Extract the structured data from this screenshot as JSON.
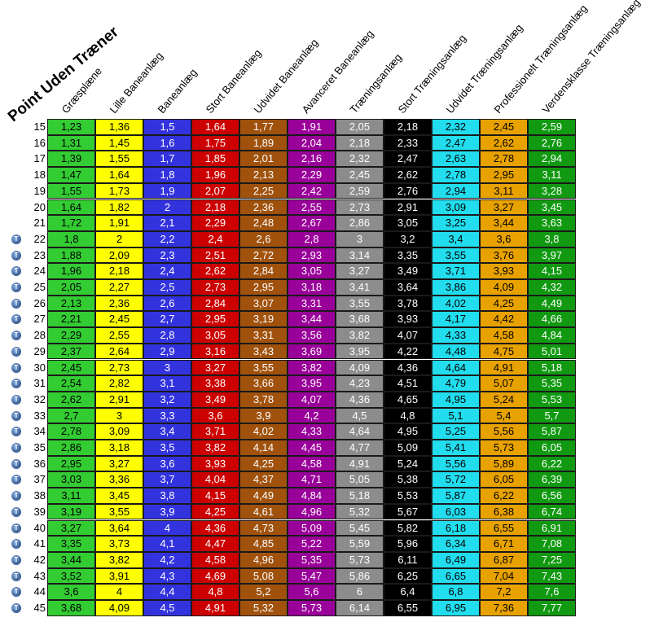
{
  "title": "Point Uden Træner",
  "chart_data": {
    "type": "table",
    "title": "Point Uden Træner",
    "columns": [
      {
        "name": "Græsplæne",
        "color": "#33cc33",
        "text_color": "#000000"
      },
      {
        "name": "Lille Baneanlæg",
        "color": "#ffff00",
        "text_color": "#000000"
      },
      {
        "name": "Baneanlæg",
        "color": "#3333dd",
        "text_color": "#ffffff"
      },
      {
        "name": "Stort Baneanlæg",
        "color": "#cc0000",
        "text_color": "#ffffff"
      },
      {
        "name": "Udvidet Baneanlæg",
        "color": "#a0520d",
        "text_color": "#ffffff"
      },
      {
        "name": "Avanceret Baneanlæg",
        "color": "#990099",
        "text_color": "#ffffff"
      },
      {
        "name": "Træningsanlæg",
        "color": "#8c8c8c",
        "text_color": "#ffffff"
      },
      {
        "name": "Stort Træningsanlæg",
        "color": "#000000",
        "text_color": "#ffffff"
      },
      {
        "name": "Udvidet Træningsanlæg",
        "color": "#22ddee",
        "text_color": "#000000"
      },
      {
        "name": "Professionelt Træningsanlæg",
        "color": "#e8a200",
        "text_color": "#000000"
      },
      {
        "name": "Verdensklasse Træningsanlæg",
        "color": "#119911",
        "text_color": "#ffffff"
      }
    ],
    "rows": [
      {
        "label": "15",
        "icon": false,
        "values": [
          "1,23",
          "1,36",
          "1,5",
          "1,64",
          "1,77",
          "1,91",
          "2,05",
          "2,18",
          "2,32",
          "2,45",
          "2,59"
        ]
      },
      {
        "label": "16",
        "icon": false,
        "values": [
          "1,31",
          "1,45",
          "1,6",
          "1,75",
          "1,89",
          "2,04",
          "2,18",
          "2,33",
          "2,47",
          "2,62",
          "2,76"
        ]
      },
      {
        "label": "17",
        "icon": false,
        "values": [
          "1,39",
          "1,55",
          "1,7",
          "1,85",
          "2,01",
          "2,16",
          "2,32",
          "2,47",
          "2,63",
          "2,78",
          "2,94"
        ]
      },
      {
        "label": "18",
        "icon": false,
        "values": [
          "1,47",
          "1,64",
          "1,8",
          "1,96",
          "2,13",
          "2,29",
          "2,45",
          "2,62",
          "2,78",
          "2,95",
          "3,11"
        ]
      },
      {
        "label": "19",
        "icon": false,
        "values": [
          "1,55",
          "1,73",
          "1,9",
          "2,07",
          "2,25",
          "2,42",
          "2,59",
          "2,76",
          "2,94",
          "3,11",
          "3,28"
        ]
      },
      {
        "label": "20",
        "icon": false,
        "values": [
          "1,64",
          "1,82",
          "2",
          "2,18",
          "2,36",
          "2,55",
          "2,73",
          "2,91",
          "3,09",
          "3,27",
          "3,45"
        ]
      },
      {
        "label": "21",
        "icon": false,
        "values": [
          "1,72",
          "1,91",
          "2,1",
          "2,29",
          "2,48",
          "2,67",
          "2,86",
          "3,05",
          "3,25",
          "3,44",
          "3,63"
        ]
      },
      {
        "label": "22",
        "icon": true,
        "values": [
          "1,8",
          "2",
          "2,2",
          "2,4",
          "2,6",
          "2,8",
          "3",
          "3,2",
          "3,4",
          "3,6",
          "3,8"
        ]
      },
      {
        "label": "23",
        "icon": true,
        "values": [
          "1,88",
          "2,09",
          "2,3",
          "2,51",
          "2,72",
          "2,93",
          "3,14",
          "3,35",
          "3,55",
          "3,76",
          "3,97"
        ]
      },
      {
        "label": "24",
        "icon": true,
        "values": [
          "1,96",
          "2,18",
          "2,4",
          "2,62",
          "2,84",
          "3,05",
          "3,27",
          "3,49",
          "3,71",
          "3,93",
          "4,15"
        ]
      },
      {
        "label": "25",
        "icon": true,
        "values": [
          "2,05",
          "2,27",
          "2,5",
          "2,73",
          "2,95",
          "3,18",
          "3,41",
          "3,64",
          "3,86",
          "4,09",
          "4,32"
        ]
      },
      {
        "label": "26",
        "icon": true,
        "values": [
          "2,13",
          "2,36",
          "2,6",
          "2,84",
          "3,07",
          "3,31",
          "3,55",
          "3,78",
          "4,02",
          "4,25",
          "4,49"
        ]
      },
      {
        "label": "27",
        "icon": true,
        "values": [
          "2,21",
          "2,45",
          "2,7",
          "2,95",
          "3,19",
          "3,44",
          "3,68",
          "3,93",
          "4,17",
          "4,42",
          "4,66"
        ]
      },
      {
        "label": "28",
        "icon": true,
        "values": [
          "2,29",
          "2,55",
          "2,8",
          "3,05",
          "3,31",
          "3,56",
          "3,82",
          "4,07",
          "4,33",
          "4,58",
          "4,84"
        ]
      },
      {
        "label": "29",
        "icon": true,
        "values": [
          "2,37",
          "2,64",
          "2,9",
          "3,16",
          "3,43",
          "3,69",
          "3,95",
          "4,22",
          "4,48",
          "4,75",
          "5,01"
        ]
      },
      {
        "label": "30",
        "icon": true,
        "values": [
          "2,45",
          "2,73",
          "3",
          "3,27",
          "3,55",
          "3,82",
          "4,09",
          "4,36",
          "4,64",
          "4,91",
          "5,18"
        ]
      },
      {
        "label": "31",
        "icon": true,
        "values": [
          "2,54",
          "2,82",
          "3,1",
          "3,38",
          "3,66",
          "3,95",
          "4,23",
          "4,51",
          "4,79",
          "5,07",
          "5,35"
        ]
      },
      {
        "label": "32",
        "icon": true,
        "values": [
          "2,62",
          "2,91",
          "3,2",
          "3,49",
          "3,78",
          "4,07",
          "4,36",
          "4,65",
          "4,95",
          "5,24",
          "5,53"
        ]
      },
      {
        "label": "33",
        "icon": true,
        "values": [
          "2,7",
          "3",
          "3,3",
          "3,6",
          "3,9",
          "4,2",
          "4,5",
          "4,8",
          "5,1",
          "5,4",
          "5,7"
        ]
      },
      {
        "label": "34",
        "icon": true,
        "values": [
          "2,78",
          "3,09",
          "3,4",
          "3,71",
          "4,02",
          "4,33",
          "4,64",
          "4,95",
          "5,25",
          "5,56",
          "5,87"
        ]
      },
      {
        "label": "35",
        "icon": true,
        "values": [
          "2,86",
          "3,18",
          "3,5",
          "3,82",
          "4,14",
          "4,45",
          "4,77",
          "5,09",
          "5,41",
          "5,73",
          "6,05"
        ]
      },
      {
        "label": "36",
        "icon": true,
        "values": [
          "2,95",
          "3,27",
          "3,6",
          "3,93",
          "4,25",
          "4,58",
          "4,91",
          "5,24",
          "5,56",
          "5,89",
          "6,22"
        ]
      },
      {
        "label": "37",
        "icon": true,
        "values": [
          "3,03",
          "3,36",
          "3,7",
          "4,04",
          "4,37",
          "4,71",
          "5,05",
          "5,38",
          "5,72",
          "6,05",
          "6,39"
        ]
      },
      {
        "label": "38",
        "icon": true,
        "values": [
          "3,11",
          "3,45",
          "3,8",
          "4,15",
          "4,49",
          "4,84",
          "5,18",
          "5,53",
          "5,87",
          "6,22",
          "6,56"
        ]
      },
      {
        "label": "39",
        "icon": true,
        "values": [
          "3,19",
          "3,55",
          "3,9",
          "4,25",
          "4,61",
          "4,96",
          "5,32",
          "5,67",
          "6,03",
          "6,38",
          "6,74"
        ]
      },
      {
        "label": "40",
        "icon": true,
        "values": [
          "3,27",
          "3,64",
          "4",
          "4,36",
          "4,73",
          "5,09",
          "5,45",
          "5,82",
          "6,18",
          "6,55",
          "6,91"
        ]
      },
      {
        "label": "41",
        "icon": true,
        "values": [
          "3,35",
          "3,73",
          "4,1",
          "4,47",
          "4,85",
          "5,22",
          "5,59",
          "5,96",
          "6,34",
          "6,71",
          "7,08"
        ]
      },
      {
        "label": "42",
        "icon": true,
        "values": [
          "3,44",
          "3,82",
          "4,2",
          "4,58",
          "4,96",
          "5,35",
          "5,73",
          "6,11",
          "6,49",
          "6,87",
          "7,25"
        ]
      },
      {
        "label": "43",
        "icon": true,
        "values": [
          "3,52",
          "3,91",
          "4,3",
          "4,69",
          "5,08",
          "5,47",
          "5,86",
          "6,25",
          "6,65",
          "7,04",
          "7,43"
        ]
      },
      {
        "label": "44",
        "icon": true,
        "values": [
          "3,6",
          "4",
          "4,4",
          "4,8",
          "5,2",
          "5,6",
          "6",
          "6,4",
          "6,8",
          "7,2",
          "7,6"
        ]
      },
      {
        "label": "45",
        "icon": true,
        "values": [
          "3,68",
          "4,09",
          "4,5",
          "4,91",
          "5,32",
          "5,73",
          "6,14",
          "6,55",
          "6,95",
          "7,36",
          "7,77"
        ]
      }
    ]
  }
}
